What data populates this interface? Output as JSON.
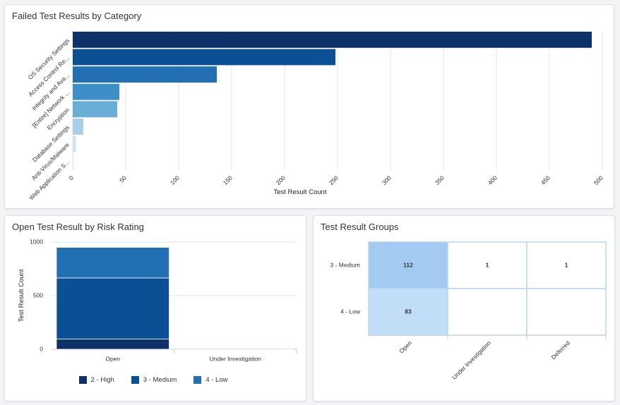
{
  "cards": {
    "failed": {
      "title": "Failed Test Results by Category"
    },
    "risk": {
      "title": "Open Test Result by Risk Rating"
    },
    "groups": {
      "title": "Test Result Groups"
    }
  },
  "chart_data": [
    {
      "type": "bar",
      "orientation": "horizontal",
      "title": "Failed Test Results by Category",
      "categories": [
        "OS Security Settings",
        "Access Control Re...",
        "Integrity and Ava...",
        "[Entire] Network ...",
        "Encryption",
        "Database Settings",
        "Anti-Virus/Malware",
        "Web Application S..."
      ],
      "values": [
        490,
        248,
        136,
        44,
        42,
        10,
        3,
        1
      ],
      "colors": [
        "#0d3269",
        "#0b4f95",
        "#2270b3",
        "#3d8fc8",
        "#6aaed7",
        "#a9cfe7",
        "#cfe2f1",
        "#e3eef7"
      ],
      "xlabel": "Test Result Count",
      "xlim": [
        0,
        500
      ],
      "xticks": [
        0,
        50,
        100,
        150,
        200,
        250,
        300,
        350,
        400,
        450,
        500
      ],
      "grid": true
    },
    {
      "type": "bar",
      "stacked": true,
      "title": "Open Test Result by Risk Rating",
      "categories": [
        "Open",
        "Under Investigation"
      ],
      "series": [
        {
          "name": "2 - High",
          "color": "#0d3269",
          "values": [
            95,
            1
          ]
        },
        {
          "name": "3 - Medium",
          "color": "#0b4f95",
          "values": [
            570,
            4
          ]
        },
        {
          "name": "4 - Low",
          "color": "#2270b3",
          "values": [
            285,
            2
          ]
        }
      ],
      "ylabel": "Test Result Count",
      "ylim": [
        0,
        1000
      ],
      "yticks": [
        0,
        500,
        1000
      ],
      "legend": "bottom",
      "grid": true
    },
    {
      "type": "heatmap",
      "title": "Test Result Groups",
      "rows": [
        "3 - Medium",
        "4 - Low"
      ],
      "columns": [
        "Open",
        "Under Investigation",
        "Deferred"
      ],
      "values": [
        [
          112,
          1,
          1
        ],
        [
          83,
          null,
          null
        ]
      ],
      "colors": {
        "high": "#a3cbf2",
        "mid": "#c2ddf8",
        "low": "#ffffff",
        "border": "#b9d6f2"
      }
    }
  ]
}
